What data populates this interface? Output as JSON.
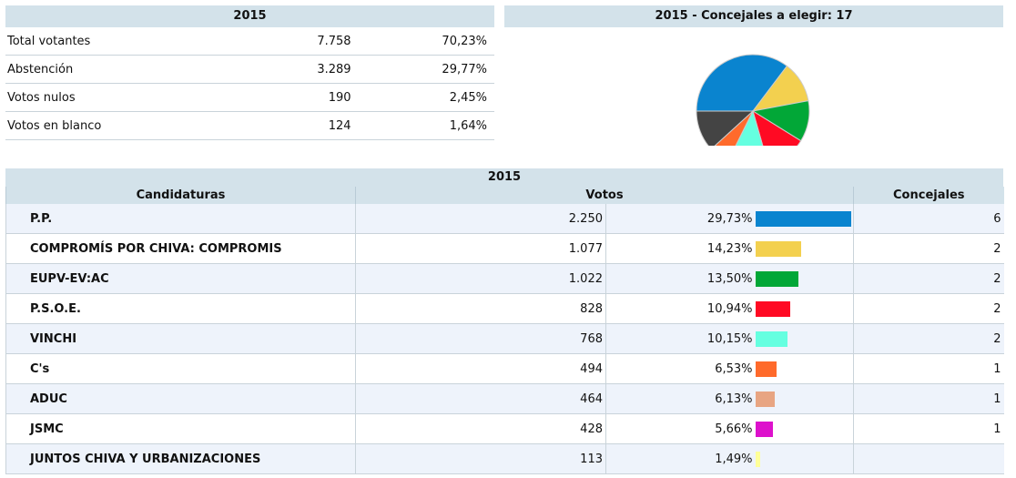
{
  "summary": {
    "title": "2015",
    "rows": [
      {
        "label": "Total votantes",
        "value": "7.758",
        "pct": "70,23%"
      },
      {
        "label": "Abstención",
        "value": "3.289",
        "pct": "29,77%"
      },
      {
        "label": "Votos nulos",
        "value": "190",
        "pct": "2,45%"
      },
      {
        "label": "Votos en blanco",
        "value": "124",
        "pct": "1,64%"
      }
    ]
  },
  "pie": {
    "title": "2015 - Concejales a elegir: 17",
    "slices": [
      {
        "value": 6,
        "color": "#0a84cf"
      },
      {
        "value": 2,
        "color": "#f3d04f"
      },
      {
        "value": 2,
        "color": "#02a737"
      },
      {
        "value": 2,
        "color": "#ff0a23"
      },
      {
        "value": 2,
        "color": "#65ffe0"
      },
      {
        "value": 1,
        "color": "#ff6a2b"
      },
      {
        "value": 2,
        "color": "#444444"
      }
    ]
  },
  "results": {
    "title": "2015",
    "headers": {
      "candidaturas": "Candidaturas",
      "votos": "Votos",
      "concejales": "Concejales"
    },
    "rows": [
      {
        "name": "P.P.",
        "votes": "2.250",
        "pct": "29,73%",
        "pct_value": 29.73,
        "color": "#0a84cf",
        "seats": "6"
      },
      {
        "name": "COMPROMÍS POR CHIVA: COMPROMIS",
        "votes": "1.077",
        "pct": "14,23%",
        "pct_value": 14.23,
        "color": "#f3d04f",
        "seats": "2"
      },
      {
        "name": "EUPV-EV:AC",
        "votes": "1.022",
        "pct": "13,50%",
        "pct_value": 13.5,
        "color": "#02a737",
        "seats": "2"
      },
      {
        "name": "P.S.O.E.",
        "votes": "828",
        "pct": "10,94%",
        "pct_value": 10.94,
        "color": "#ff0a23",
        "seats": "2"
      },
      {
        "name": "VINCHI",
        "votes": "768",
        "pct": "10,15%",
        "pct_value": 10.15,
        "color": "#65ffe0",
        "seats": "2"
      },
      {
        "name": "C's",
        "votes": "494",
        "pct": "6,53%",
        "pct_value": 6.53,
        "color": "#ff6a2b",
        "seats": "1"
      },
      {
        "name": "ADUC",
        "votes": "464",
        "pct": "6,13%",
        "pct_value": 6.13,
        "color": "#e8a582",
        "seats": "1"
      },
      {
        "name": "JSMC",
        "votes": "428",
        "pct": "5,66%",
        "pct_value": 5.66,
        "color": "#dd11cc",
        "seats": "1"
      },
      {
        "name": "JUNTOS CHIVA Y URBANIZACIONES",
        "votes": "113",
        "pct": "1,49%",
        "pct_value": 1.49,
        "color": "#ffff99",
        "seats": ""
      }
    ]
  }
}
